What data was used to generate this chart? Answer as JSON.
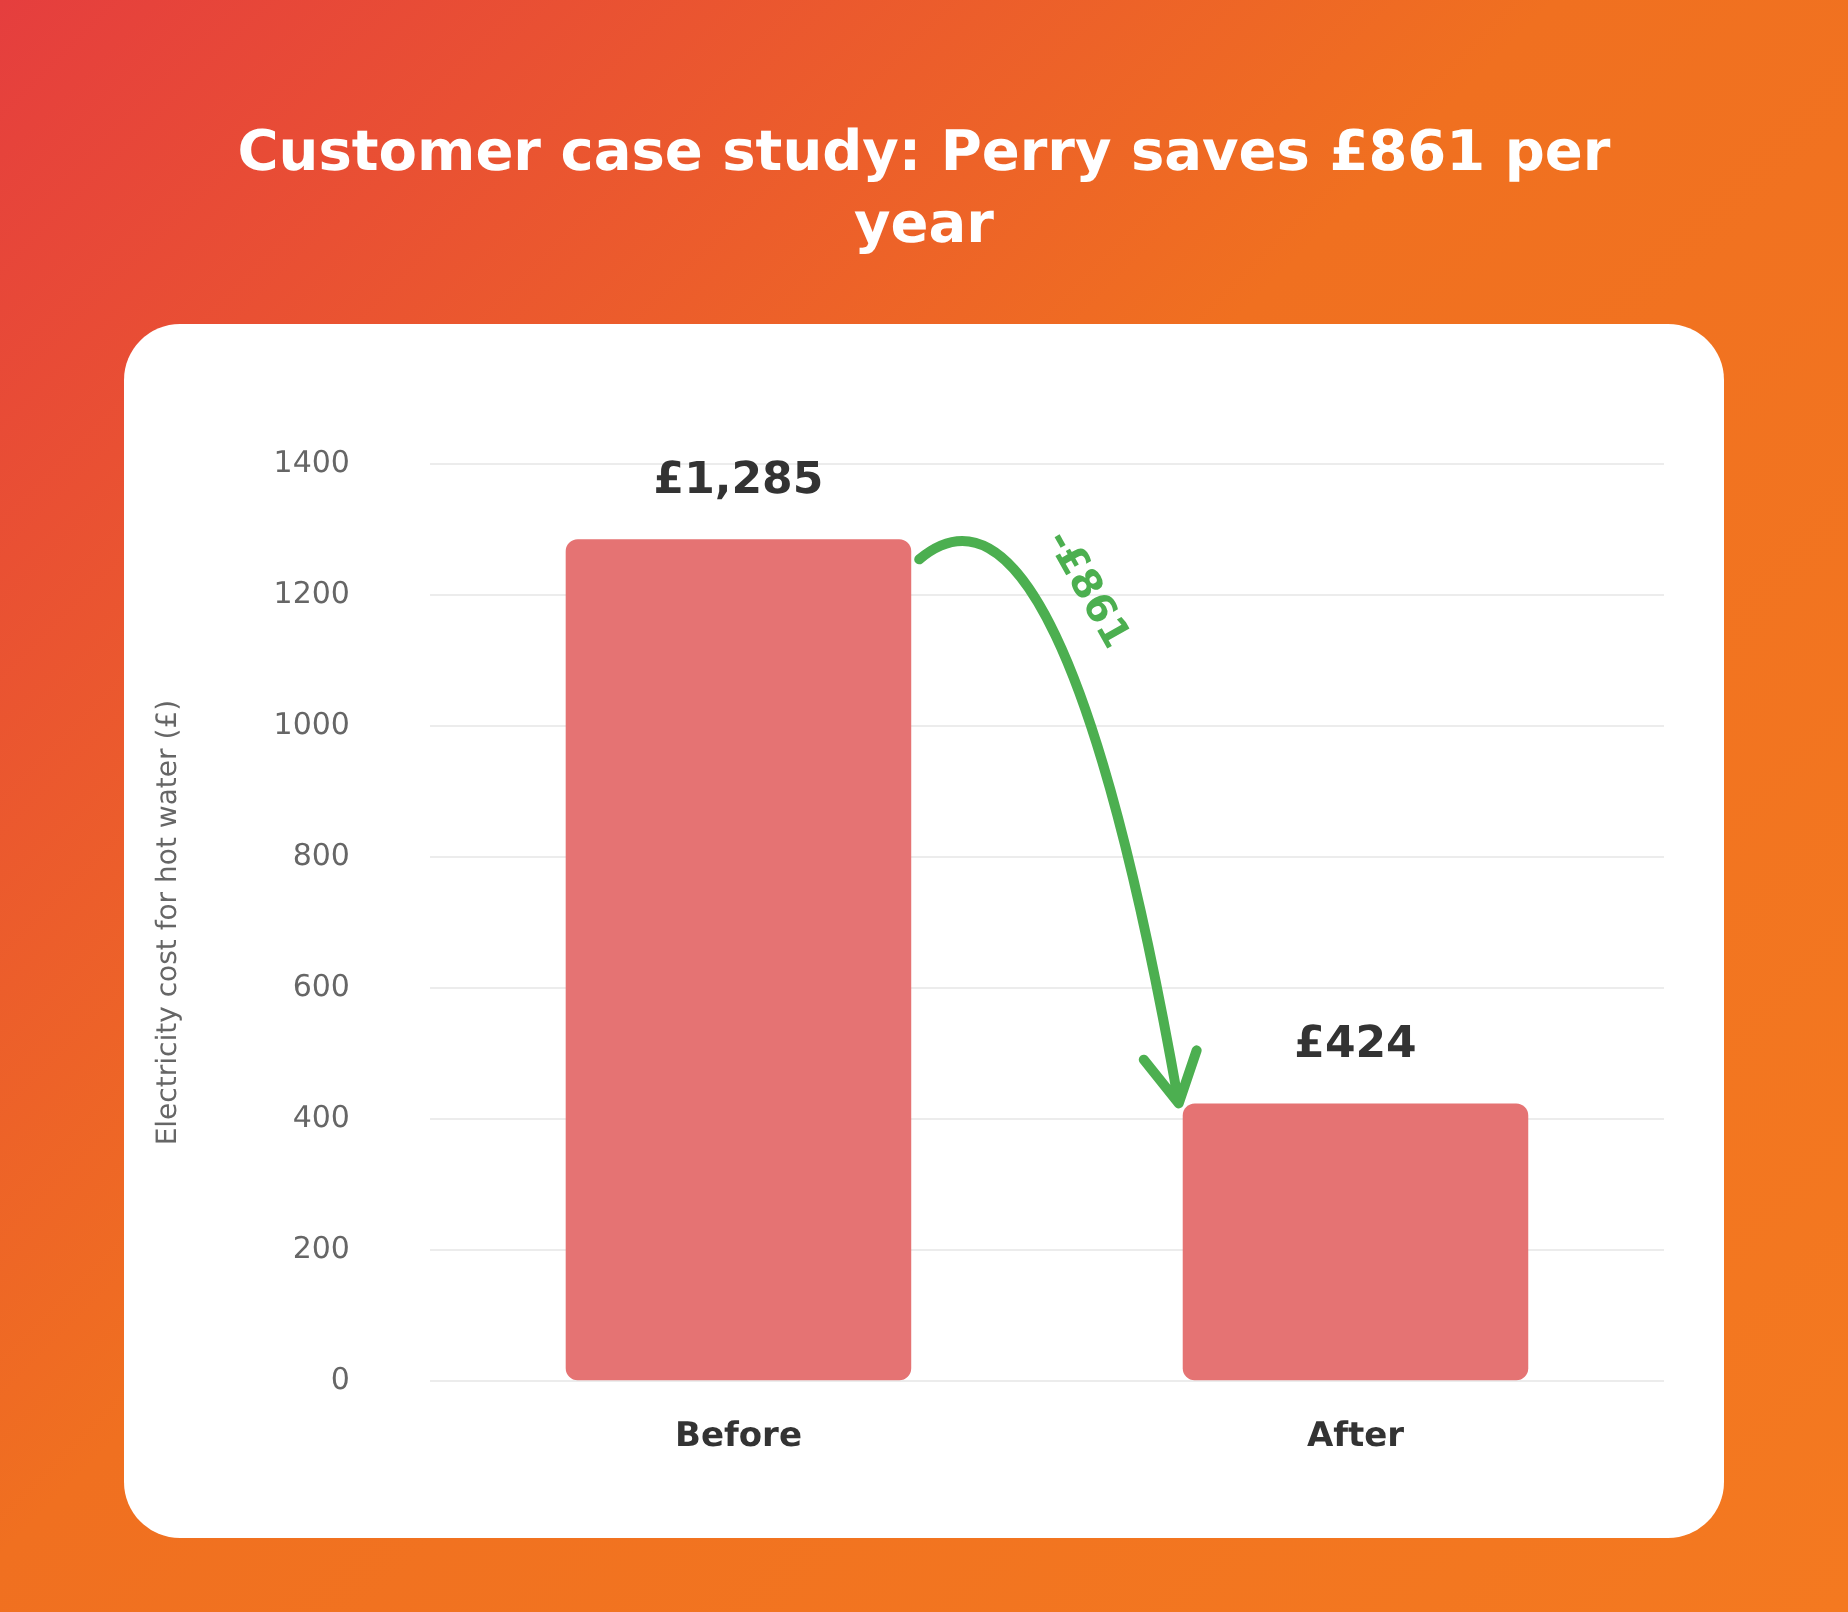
{
  "chart_data": {
    "type": "bar",
    "title": "Customer case study: Perry saves £861 per year",
    "ylabel": "Electricity cost for hot water (£)",
    "categories": [
      "Before",
      "After"
    ],
    "values": [
      1285,
      424
    ],
    "color": "#e57373",
    "value_labels": [
      "£1,285",
      "£424"
    ],
    "ylim": [
      0,
      1400
    ],
    "yticks": [
      0,
      200,
      400,
      600,
      800,
      1000,
      1200,
      1400
    ],
    "grid": "y",
    "legend": false,
    "annotations": [
      "-£861"
    ]
  }
}
